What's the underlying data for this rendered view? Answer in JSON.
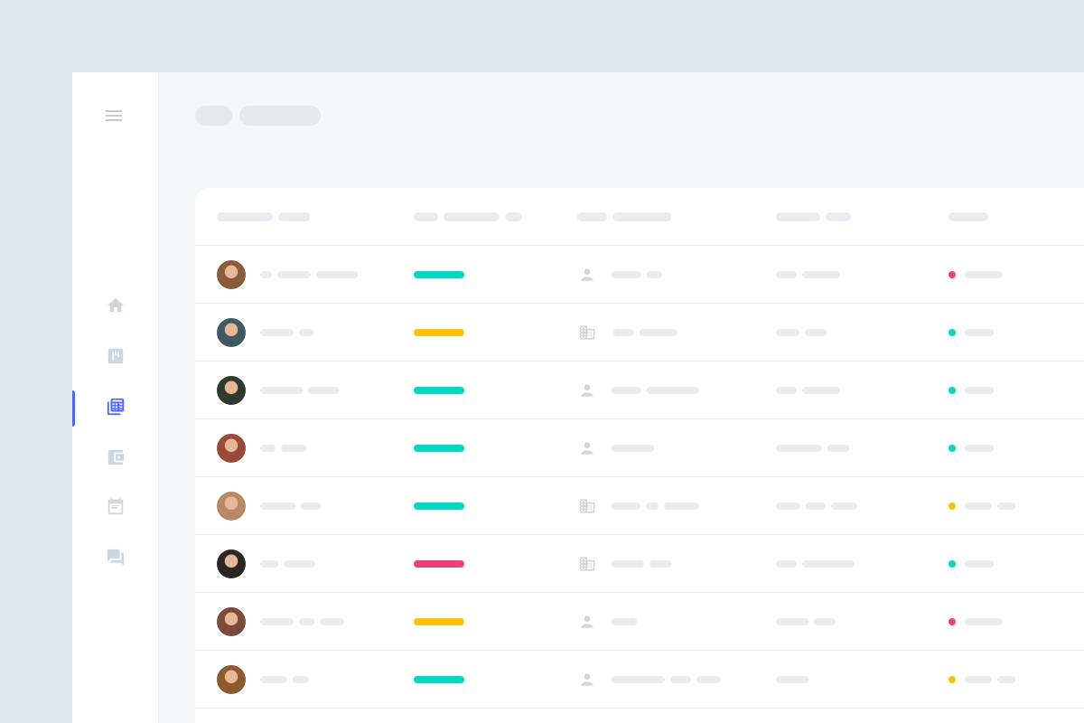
{
  "colors": {
    "background": "#e1e8f0",
    "accent": "#4f63ff",
    "icon": "#cfd5db",
    "placeholder": "#e9ecef",
    "teal": "#00d8c4",
    "yellow": "#ffc107",
    "pink": "#ec407a"
  },
  "sidebar": {
    "items": [
      {
        "icon": "home-icon",
        "active": false
      },
      {
        "icon": "board-icon",
        "active": false
      },
      {
        "icon": "calendar-grid-icon",
        "active": true
      },
      {
        "icon": "wallet-icon",
        "active": false
      },
      {
        "icon": "event-icon",
        "active": false
      },
      {
        "icon": "chat-icon",
        "active": false
      }
    ]
  },
  "table": {
    "rows": [
      {
        "avatar": "#8a5a3c",
        "status_bar": "#00d8c4",
        "type_icon": "person-icon",
        "dot": "#ec407a"
      },
      {
        "avatar": "#3f5a63",
        "status_bar": "#ffc107",
        "type_icon": "building-icon",
        "dot": "#00d8c4"
      },
      {
        "avatar": "#2f3b2e",
        "status_bar": "#00d8c4",
        "type_icon": "person-icon",
        "dot": "#00d8c4"
      },
      {
        "avatar": "#9a4a3a",
        "status_bar": "#00d8c4",
        "type_icon": "person-icon",
        "dot": "#00d8c4"
      },
      {
        "avatar": "#b98865",
        "status_bar": "#00d8c4",
        "type_icon": "building-icon",
        "dot": "#ffc107"
      },
      {
        "avatar": "#2b2623",
        "status_bar": "#ec407a",
        "type_icon": "building-icon",
        "dot": "#00d8c4"
      },
      {
        "avatar": "#7a4a3a",
        "status_bar": "#ffc107",
        "type_icon": "person-icon",
        "dot": "#ec407a"
      },
      {
        "avatar": "#8c5a2c",
        "status_bar": "#00d8c4",
        "type_icon": "person-icon",
        "dot": "#ffc107"
      }
    ]
  }
}
